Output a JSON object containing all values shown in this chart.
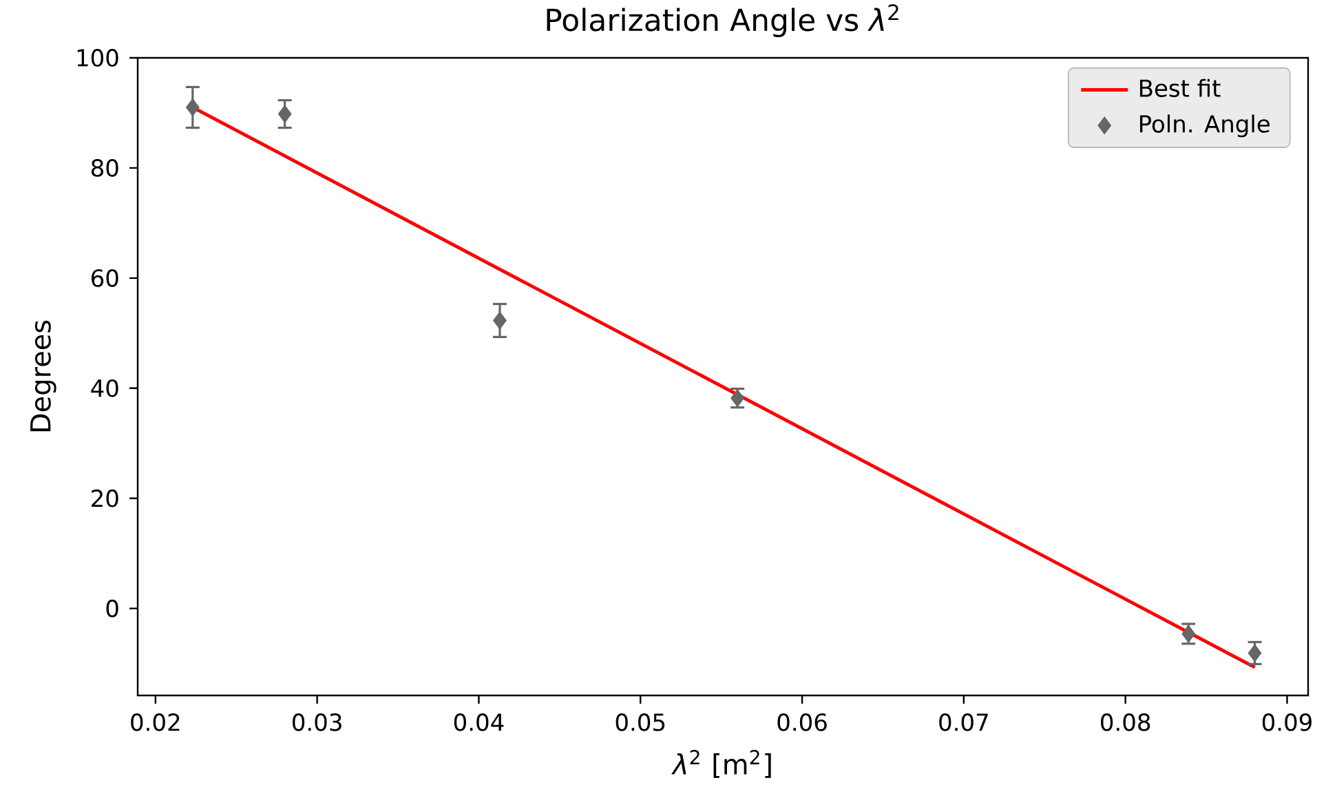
{
  "chart_data": {
    "type": "scatter",
    "title": "Polarization Angle vs *λ*$^{2}$",
    "xlabel": "*λ*$^{2}$ [m$^{2}$]",
    "ylabel": "Degrees",
    "xlim": [
      0.0189,
      0.0913
    ],
    "xticks": [
      0.02,
      0.03,
      0.04,
      0.05,
      0.06,
      0.07,
      0.08,
      0.09
    ],
    "ylim": [
      -15.8,
      100
    ],
    "yticks": [
      0,
      20,
      40,
      60,
      80,
      100
    ],
    "grid": false,
    "legend": "top right",
    "series": [
      {
        "name": "Best fit",
        "type": "line",
        "color": "#ff0000",
        "line_style": "solid",
        "marker": "none",
        "x": [
          0.0223,
          0.088
        ],
        "values": [
          91.0,
          -10.7
        ]
      },
      {
        "name": "Poln. Angle",
        "color": "#666666",
        "marker": "diamond",
        "x": [
          0.0223,
          0.028,
          0.0413,
          0.056,
          0.0839,
          0.088
        ],
        "values": [
          91.0,
          89.8,
          52.3,
          38.2,
          -4.6,
          -8.1
        ],
        "errors": [
          3.7,
          2.5,
          3.0,
          1.7,
          1.8,
          2.0
        ]
      }
    ]
  }
}
